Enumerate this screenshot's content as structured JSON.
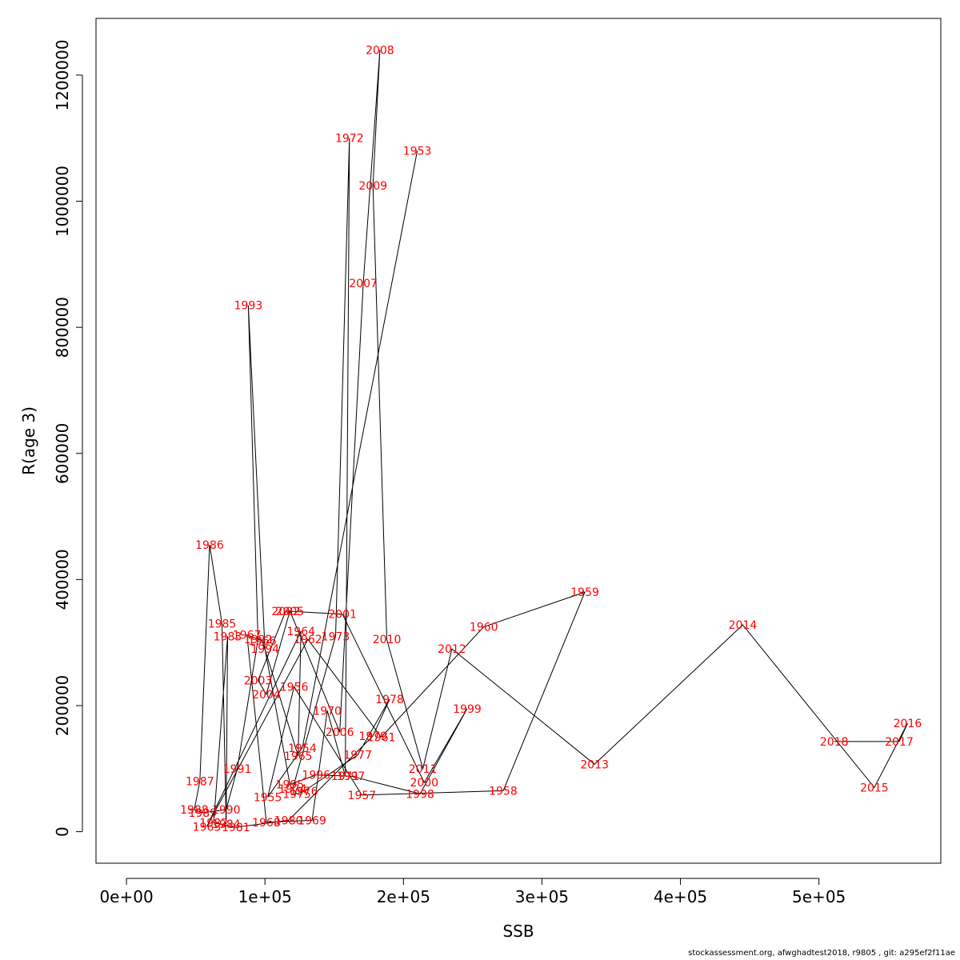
{
  "chart_data": {
    "type": "line",
    "title": "",
    "xlabel": "SSB",
    "ylabel": "R(age 3)",
    "xlim": [
      -22000,
      588000
    ],
    "ylim": [
      -50000,
      1290000
    ],
    "x_ticks": [
      0,
      100000,
      200000,
      300000,
      400000,
      500000
    ],
    "x_tick_labels": [
      "0e+00",
      "1e+05",
      "2e+05",
      "3e+05",
      "4e+05",
      "5e+05"
    ],
    "y_ticks": [
      0,
      200000,
      400000,
      600000,
      800000,
      1000000,
      1200000
    ],
    "y_tick_labels": [
      "0",
      "200000",
      "400000",
      "600000",
      "800000",
      "1000000",
      "1200000"
    ],
    "grid": false,
    "line_color": "#000000",
    "label_color": "#ff0000",
    "points": [
      {
        "label": "1953",
        "x": 210000,
        "y": 1080000
      },
      {
        "label": "1954",
        "x": 127000,
        "y": 133000
      },
      {
        "label": "1955",
        "x": 102000,
        "y": 55000
      },
      {
        "label": "1956",
        "x": 121000,
        "y": 230000
      },
      {
        "label": "1957",
        "x": 170000,
        "y": 58000
      },
      {
        "label": "1958",
        "x": 272000,
        "y": 65000
      },
      {
        "label": "1959",
        "x": 331000,
        "y": 380000
      },
      {
        "label": "1960",
        "x": 258000,
        "y": 325000
      },
      {
        "label": "1961",
        "x": 184000,
        "y": 150000
      },
      {
        "label": "1962",
        "x": 131000,
        "y": 305000
      },
      {
        "label": "1963",
        "x": 58000,
        "y": 8000
      },
      {
        "label": "1964",
        "x": 126000,
        "y": 318000
      },
      {
        "label": "1965",
        "x": 124000,
        "y": 120000
      },
      {
        "label": "1966",
        "x": 98000,
        "y": 303000
      },
      {
        "label": "1967",
        "x": 87000,
        "y": 312000
      },
      {
        "label": "1968",
        "x": 101000,
        "y": 15000
      },
      {
        "label": "1969",
        "x": 134000,
        "y": 18000
      },
      {
        "label": "1970",
        "x": 145000,
        "y": 192000
      },
      {
        "label": "1971",
        "x": 158000,
        "y": 88000
      },
      {
        "label": "1972",
        "x": 161000,
        "y": 1100000
      },
      {
        "label": "1973",
        "x": 151000,
        "y": 310000
      },
      {
        "label": "1974",
        "x": 120000,
        "y": 68000
      },
      {
        "label": "1975",
        "x": 123000,
        "y": 60000
      },
      {
        "label": "1976",
        "x": 128000,
        "y": 64000
      },
      {
        "label": "1977",
        "x": 167000,
        "y": 122000
      },
      {
        "label": "1978",
        "x": 190000,
        "y": 210000
      },
      {
        "label": "1979",
        "x": 178000,
        "y": 152000
      },
      {
        "label": "1980",
        "x": 117000,
        "y": 18000
      },
      {
        "label": "1981",
        "x": 79000,
        "y": 7000
      },
      {
        "label": "1982",
        "x": 63000,
        "y": 14000
      },
      {
        "label": "1983",
        "x": 73000,
        "y": 310000
      },
      {
        "label": "1984",
        "x": 72000,
        "y": 12000
      },
      {
        "label": "1985",
        "x": 69000,
        "y": 330000
      },
      {
        "label": "1986",
        "x": 60000,
        "y": 455000
      },
      {
        "label": "1987",
        "x": 53000,
        "y": 80000
      },
      {
        "label": "1988",
        "x": 49000,
        "y": 35000
      },
      {
        "label": "1989",
        "x": 55000,
        "y": 30000
      },
      {
        "label": "1990",
        "x": 72000,
        "y": 35000
      },
      {
        "label": "1991",
        "x": 80000,
        "y": 100000
      },
      {
        "label": "1992",
        "x": 95000,
        "y": 305000
      },
      {
        "label": "1993",
        "x": 88000,
        "y": 835000
      },
      {
        "label": "1994",
        "x": 100000,
        "y": 290000
      },
      {
        "label": "1995",
        "x": 118000,
        "y": 75000
      },
      {
        "label": "1996",
        "x": 137000,
        "y": 90000
      },
      {
        "label": "1997",
        "x": 162000,
        "y": 88000
      },
      {
        "label": "1998",
        "x": 212000,
        "y": 60000
      },
      {
        "label": "1999",
        "x": 246000,
        "y": 195000
      },
      {
        "label": "2000",
        "x": 215000,
        "y": 78000
      },
      {
        "label": "2001",
        "x": 156000,
        "y": 345000
      },
      {
        "label": "2002",
        "x": 115000,
        "y": 350000
      },
      {
        "label": "2003",
        "x": 95000,
        "y": 240000
      },
      {
        "label": "2004",
        "x": 101000,
        "y": 218000
      },
      {
        "label": "2005",
        "x": 118000,
        "y": 350000
      },
      {
        "label": "2006",
        "x": 154000,
        "y": 158000
      },
      {
        "label": "2007",
        "x": 171000,
        "y": 870000
      },
      {
        "label": "2008",
        "x": 183000,
        "y": 1240000
      },
      {
        "label": "2009",
        "x": 178000,
        "y": 1025000
      },
      {
        "label": "2010",
        "x": 188000,
        "y": 305000
      },
      {
        "label": "2011",
        "x": 214000,
        "y": 100000
      },
      {
        "label": "2012",
        "x": 235000,
        "y": 290000
      },
      {
        "label": "2013",
        "x": 338000,
        "y": 107000
      },
      {
        "label": "2014",
        "x": 445000,
        "y": 328000
      },
      {
        "label": "2015",
        "x": 540000,
        "y": 70000
      },
      {
        "label": "2016",
        "x": 564000,
        "y": 172000
      },
      {
        "label": "2017",
        "x": 558000,
        "y": 143000
      },
      {
        "label": "2018",
        "x": 511000,
        "y": 143000
      }
    ]
  },
  "footer_text": "stockassessment.org, afwghadtest2018, r9805 , git: a295ef2f11ae"
}
